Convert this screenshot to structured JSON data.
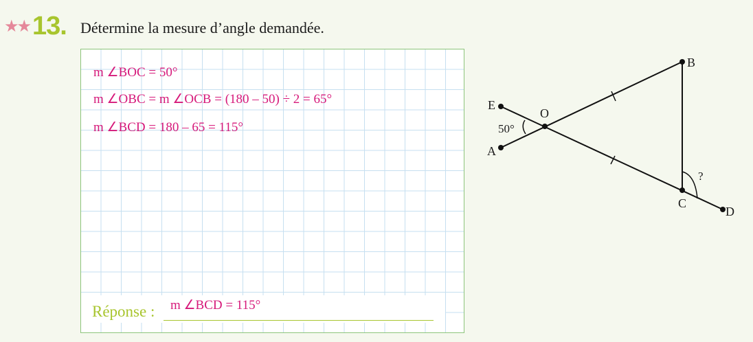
{
  "exercise": {
    "stars": "★★",
    "number": "13.",
    "instruction": "Détermine la mesure d’angle demandée."
  },
  "work_lines": [
    "m ∠BOC = 50°",
    "m ∠OBC = m ∠OCB = (180 – 50) ÷ 2 = 65°",
    "m ∠BCD = 180 – 65 = 115°"
  ],
  "response": {
    "label": "Réponse :",
    "value": "m ∠BCD = 115°"
  },
  "figure": {
    "points": {
      "E": "E",
      "A": "A",
      "O": "O",
      "B": "B",
      "C": "C",
      "D": "D"
    },
    "angle_label": "50°",
    "unknown_label": "?"
  },
  "colors": {
    "accent_green": "#a8c52e",
    "answer_pink": "#d6197a",
    "star_pink": "#e5889a",
    "grid_border": "#8cc47a",
    "grid_lines": "#c6dff0"
  }
}
